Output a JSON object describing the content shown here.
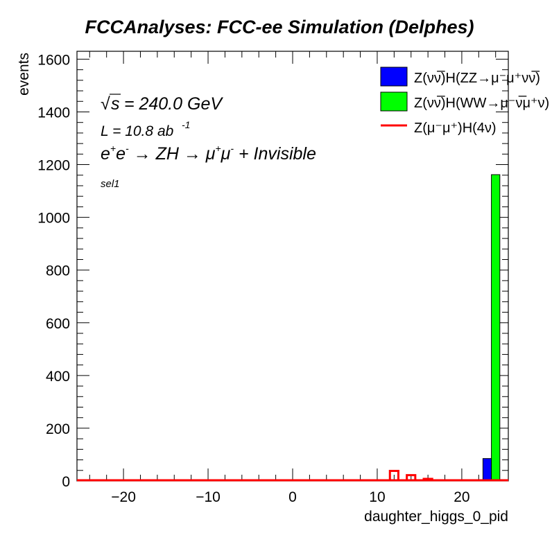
{
  "chart_data": {
    "type": "bar",
    "title": "FCCAnalyses: FCC-ee Simulation (Delphes)",
    "xlabel": "daughter_higgs_0_pid",
    "ylabel": "events",
    "xlim": [
      -25.5,
      25.5
    ],
    "ylim": [
      0,
      1630
    ],
    "x_ticks": [
      -20,
      -10,
      0,
      10,
      20
    ],
    "y_ticks": [
      0,
      200,
      400,
      600,
      800,
      1000,
      1200,
      1400,
      1600
    ],
    "x_tick_labels": [
      "−20",
      "−10",
      "0",
      "10",
      "20"
    ],
    "y_tick_labels": [
      "0",
      "200",
      "400",
      "600",
      "800",
      "1000",
      "1200",
      "1400",
      "1600"
    ],
    "bin_width": 1,
    "stacked": true,
    "series": [
      {
        "name": "Z(νν̅)H(ZZ→μ⁻μ⁺νν̅)",
        "style": "fill",
        "color": "#0000ff",
        "bins": [
          {
            "x": 23,
            "y": 85
          }
        ]
      },
      {
        "name": "Z(νν̅)H(WW→μ⁻ν̅μ⁺ν)",
        "style": "fill",
        "color": "#00ff00",
        "bins": [
          {
            "x": 24,
            "y": 1162
          }
        ]
      },
      {
        "name": "Z(μ⁻μ⁺)H(4ν)",
        "style": "line",
        "color": "#ff0000",
        "bins": [
          {
            "x": 12,
            "y": 38
          },
          {
            "x": 14,
            "y": 22
          },
          {
            "x": 16,
            "y": 8
          }
        ]
      }
    ],
    "annotations": {
      "energy_sqrt": "√",
      "energy_s": "s",
      "energy_value": " = 240.0 GeV",
      "lumi_text": "L = 10.8 ab",
      "lumi_exp": "-1",
      "process": {
        "e": "e",
        "e_plus": "+",
        "e2": "e",
        "e_minus": "-",
        "arrow1": " → ZH → ",
        "mu": "μ",
        "mu_plus": "+",
        "mu2": "μ",
        "mu_minus": "-",
        "rest": " + Invisible"
      },
      "selection": "sel1"
    },
    "legend_position": "top-right",
    "grid": false
  }
}
